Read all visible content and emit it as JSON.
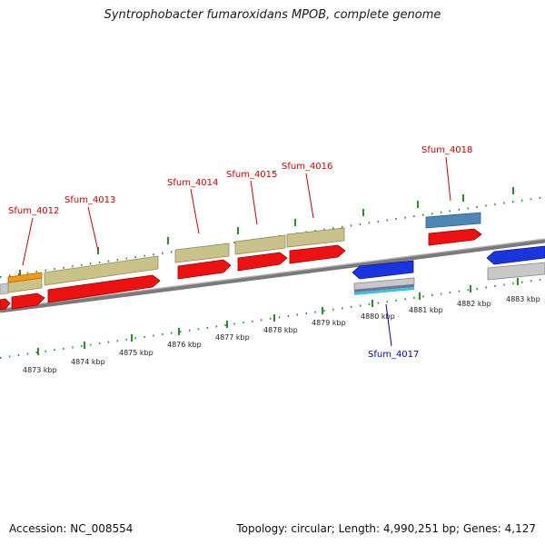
{
  "header": {
    "title": "Syntrophobacter fumaroxidans MPOB, complete genome"
  },
  "footer": {
    "accession": "Accession: NC_008554",
    "summary": "Topology: circular; Length: 4,990,251 bp; Genes: 4,127"
  },
  "colors": {
    "label_red": "#cc0000",
    "label_blue": "#0000cc",
    "cds_red": "#ee1111",
    "gene_olive": "#c9c38a",
    "blue_cds": "#1a35e0",
    "steel_blue": "#4f86b8",
    "orange": "#f59a10",
    "grey": "#c8c8c8",
    "teal": "#30c8c8",
    "purple": "#7070b0",
    "tick_green": "#2d8a2d",
    "backbone": "#888888"
  },
  "scale": {
    "unit": "kbp",
    "labels": [
      "4873 kbp",
      "4874 kbp",
      "4875 kbp",
      "4876 kbp",
      "4877 kbp",
      "4878 kbp",
      "4879 kbp",
      "4880 kbp",
      "4881 kbp",
      "4882 kbp",
      "4883 kbp"
    ]
  },
  "gene_labels": [
    {
      "text": "Sfum_4012",
      "strand": "forward"
    },
    {
      "text": "Sfum_4013",
      "strand": "forward"
    },
    {
      "text": "Sfum_4014",
      "strand": "forward"
    },
    {
      "text": "Sfum_4015",
      "strand": "forward"
    },
    {
      "text": "Sfum_4016",
      "strand": "forward"
    },
    {
      "text": "Sfum_4018",
      "strand": "forward"
    },
    {
      "text": "Sfum_4017",
      "strand": "reverse"
    }
  ]
}
